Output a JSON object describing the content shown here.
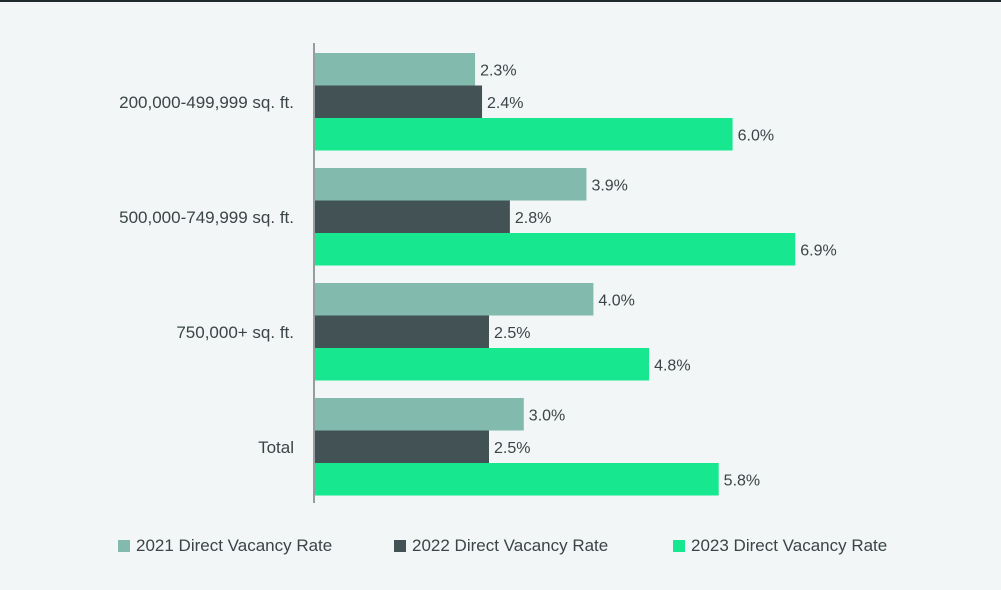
{
  "chart_data": {
    "type": "bar",
    "orientation": "horizontal",
    "categories": [
      "200,000-499,999 sq. ft.",
      "500,000-749,999 sq. ft.",
      "750,000+ sq. ft.",
      "Total"
    ],
    "series": [
      {
        "name": "2021 Direct Vacancy Rate",
        "color": "#82bbad",
        "values": [
          2.3,
          3.9,
          4.0,
          3.0
        ],
        "labels": [
          "2.3%",
          "3.9%",
          "4.0%",
          "3.0%"
        ]
      },
      {
        "name": "2022 Direct Vacancy Rate",
        "color": "#435254",
        "values": [
          2.4,
          2.8,
          2.5,
          2.5
        ],
        "labels": [
          "2.4%",
          "2.8%",
          "2.5%",
          "2.5%"
        ]
      },
      {
        "name": "2023 Direct Vacancy Rate",
        "color": "#17e88f",
        "values": [
          6.0,
          6.9,
          4.8,
          5.8
        ],
        "labels": [
          "6.0%",
          "6.9%",
          "4.8%",
          "5.8%"
        ]
      }
    ],
    "xlim": [
      0,
      8
    ],
    "grid": false,
    "legend_position": "bottom"
  }
}
